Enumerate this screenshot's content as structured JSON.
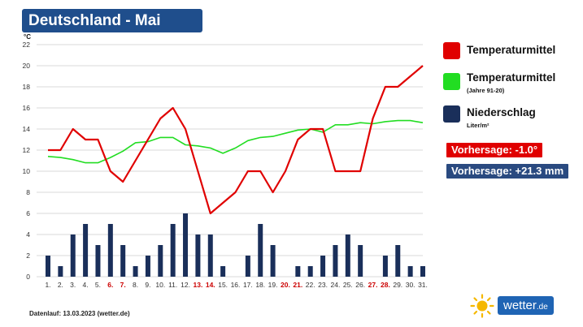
{
  "header": {
    "title": "Deutschland - Mai"
  },
  "legend": {
    "temp": {
      "label": "Temperaturmittel",
      "color": "#e00000"
    },
    "clim": {
      "label": "Temperaturmittel",
      "sub": "(Jahre 91-20)",
      "color": "#22dd22"
    },
    "rain": {
      "label": "Niederschlag",
      "sub": "Liter/m²",
      "color": "#1a2f5a"
    }
  },
  "forecast": {
    "temp": {
      "label": "Vorhersage: -1.0°",
      "color": "#e00000"
    },
    "rain": {
      "label": "Vorhersage: +21.3 mm",
      "color": "#2a4a80"
    }
  },
  "footer": {
    "note": "Datenlauf: 13.03.2023 (wetter.de)"
  },
  "brand": {
    "name": "wetter",
    "tld": ".de",
    "icon": "sun-icon"
  },
  "chart_data": {
    "type": "line",
    "ylabel": "°C",
    "ylim": [
      0,
      22
    ],
    "yticks": [
      0,
      2,
      4,
      6,
      8,
      10,
      12,
      14,
      16,
      18,
      20,
      22
    ],
    "grid": true,
    "x": [
      "1.",
      "2.",
      "3.",
      "4.",
      "5.",
      "6.",
      "7.",
      "8.",
      "9.",
      "10.",
      "11.",
      "12.",
      "13.",
      "14.",
      "15.",
      "16.",
      "17.",
      "18.",
      "19.",
      "20.",
      "21.",
      "22.",
      "23.",
      "24.",
      "25.",
      "26.",
      "27.",
      "28.",
      "29.",
      "30.",
      "31."
    ],
    "weekend_days": [
      "6.",
      "7.",
      "13.",
      "14.",
      "20.",
      "21.",
      "27.",
      "28."
    ],
    "weekend_color": "#cc0000",
    "series": [
      {
        "name": "Temperaturmittel",
        "kind": "line",
        "color": "#e00000",
        "values": [
          12,
          12,
          14,
          13,
          13,
          10,
          9,
          11,
          13,
          15,
          16,
          14,
          10,
          6,
          7,
          8,
          10,
          10,
          8,
          10,
          13,
          14,
          14,
          10,
          10,
          10,
          15,
          18,
          18,
          19,
          20
        ]
      },
      {
        "name": "Temperaturmittel (Jahre 91-20)",
        "kind": "line",
        "color": "#22dd22",
        "values": [
          11.4,
          11.3,
          11.1,
          10.8,
          10.8,
          11.3,
          11.9,
          12.7,
          12.8,
          13.2,
          13.2,
          12.5,
          12.4,
          12.2,
          11.7,
          12.2,
          12.9,
          13.2,
          13.3,
          13.6,
          13.9,
          14.0,
          13.7,
          14.4,
          14.4,
          14.6,
          14.5,
          14.7,
          14.8,
          14.8,
          14.6
        ]
      },
      {
        "name": "Niederschlag",
        "kind": "bar",
        "color": "#1a2f5a",
        "values": [
          2,
          1,
          4,
          5,
          3,
          5,
          3,
          1,
          2,
          3,
          5,
          6,
          4,
          4,
          1,
          0,
          2,
          5,
          3,
          0,
          1,
          1,
          2,
          3,
          4,
          3,
          0,
          2,
          3,
          1,
          1
        ]
      }
    ]
  }
}
